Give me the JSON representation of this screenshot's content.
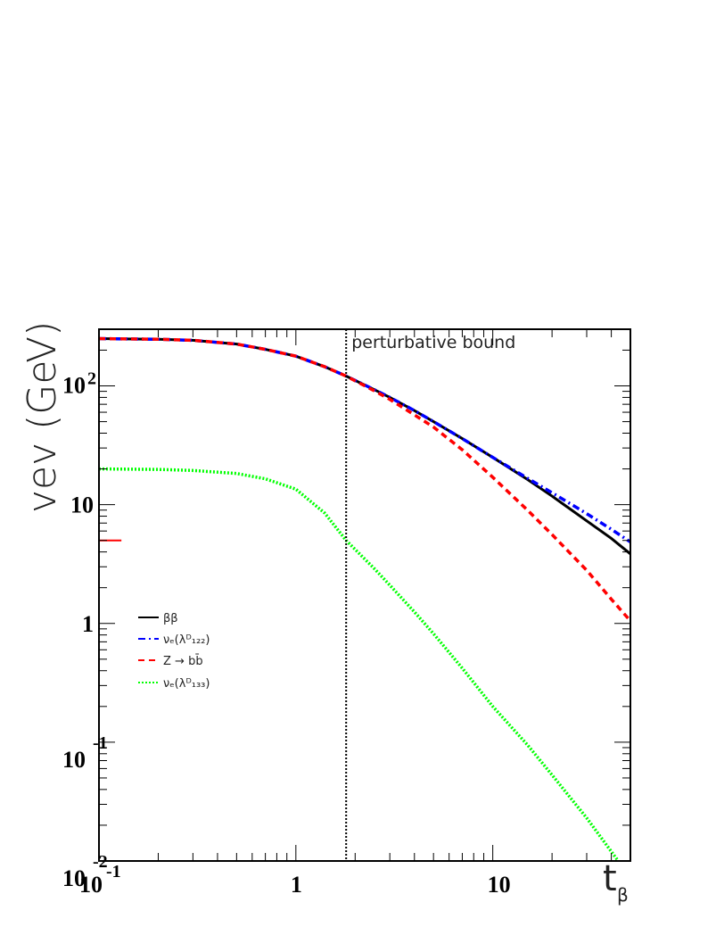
{
  "chart_data": {
    "type": "line",
    "xlabel": "t_β",
    "ylabel": "vev (GeV)",
    "xscale": "log",
    "yscale": "log",
    "xlim": [
      0.1,
      50
    ],
    "ylim": [
      0.01,
      300
    ],
    "grid": false,
    "legend_position": "left-middle",
    "x_ticks": [
      {
        "value": 0.1,
        "base": "10",
        "exp": "-1"
      },
      {
        "value": 1,
        "base": "1",
        "exp": ""
      },
      {
        "value": 10,
        "base": "10",
        "exp": ""
      }
    ],
    "y_ticks": [
      {
        "value": 0.01,
        "base": "10",
        "exp": "-2"
      },
      {
        "value": 0.1,
        "base": "10",
        "exp": "-1"
      },
      {
        "value": 1,
        "base": "1",
        "exp": ""
      },
      {
        "value": 10,
        "base": "10",
        "exp": ""
      },
      {
        "value": 100,
        "base": "10",
        "exp": "2"
      }
    ],
    "annotation": {
      "text": "perturbative bound",
      "x": 1.8
    },
    "marker_segment": {
      "y": 5,
      "x": [
        0.1,
        0.13
      ],
      "color": "#ff0000"
    },
    "series": [
      {
        "name": "ββ",
        "color": "#000000",
        "style": "solid",
        "x": [
          0.1,
          0.2,
          0.3,
          0.5,
          0.7,
          1,
          1.4,
          1.8,
          2.5,
          3,
          4,
          5,
          7,
          10,
          15,
          20,
          30,
          40,
          50
        ],
        "y": [
          250,
          247,
          242,
          225,
          203,
          178,
          145,
          121,
          93,
          80,
          62,
          50,
          36,
          25,
          16.3,
          11.8,
          7.3,
          5.2,
          3.85
        ]
      },
      {
        "name": "νₑ(λᴰ₁₂₂)",
        "color": "#0000ff",
        "style": "dashdot",
        "x": [
          0.1,
          0.2,
          0.3,
          0.5,
          0.7,
          1,
          1.4,
          1.8,
          2.5,
          3,
          4,
          5,
          7,
          10,
          15,
          20,
          30,
          40,
          50
        ],
        "y": [
          250,
          247,
          242,
          225,
          203,
          178,
          145,
          121,
          93,
          80,
          62,
          50,
          36,
          25,
          16.7,
          12.6,
          8.4,
          6.2,
          4.85
        ]
      },
      {
        "name": "Z → bb̄",
        "color": "#ff0000",
        "style": "dashed",
        "x": [
          0.1,
          0.2,
          0.3,
          0.5,
          0.7,
          1,
          1.4,
          1.8,
          2.5,
          3,
          4,
          5,
          7,
          10,
          15,
          20,
          30,
          40,
          50
        ],
        "y": [
          250,
          247,
          242,
          225,
          203,
          178,
          145,
          121,
          91,
          77,
          57,
          45,
          29,
          17,
          9,
          5.6,
          2.8,
          1.6,
          1.05
        ]
      },
      {
        "name": "νₑ(λᴰ₁₃₃)",
        "color": "#00ff00",
        "style": "dotted",
        "x": [
          0.1,
          0.2,
          0.3,
          0.5,
          0.7,
          1,
          1.4,
          1.8,
          2.5,
          3,
          4,
          5,
          7,
          10,
          15,
          20,
          30,
          43
        ],
        "y": [
          20,
          19.8,
          19.4,
          18.3,
          16.5,
          13.5,
          8.5,
          5,
          2.9,
          2.1,
          1.25,
          0.82,
          0.42,
          0.2,
          0.095,
          0.053,
          0.023,
          0.0102
        ]
      }
    ]
  }
}
